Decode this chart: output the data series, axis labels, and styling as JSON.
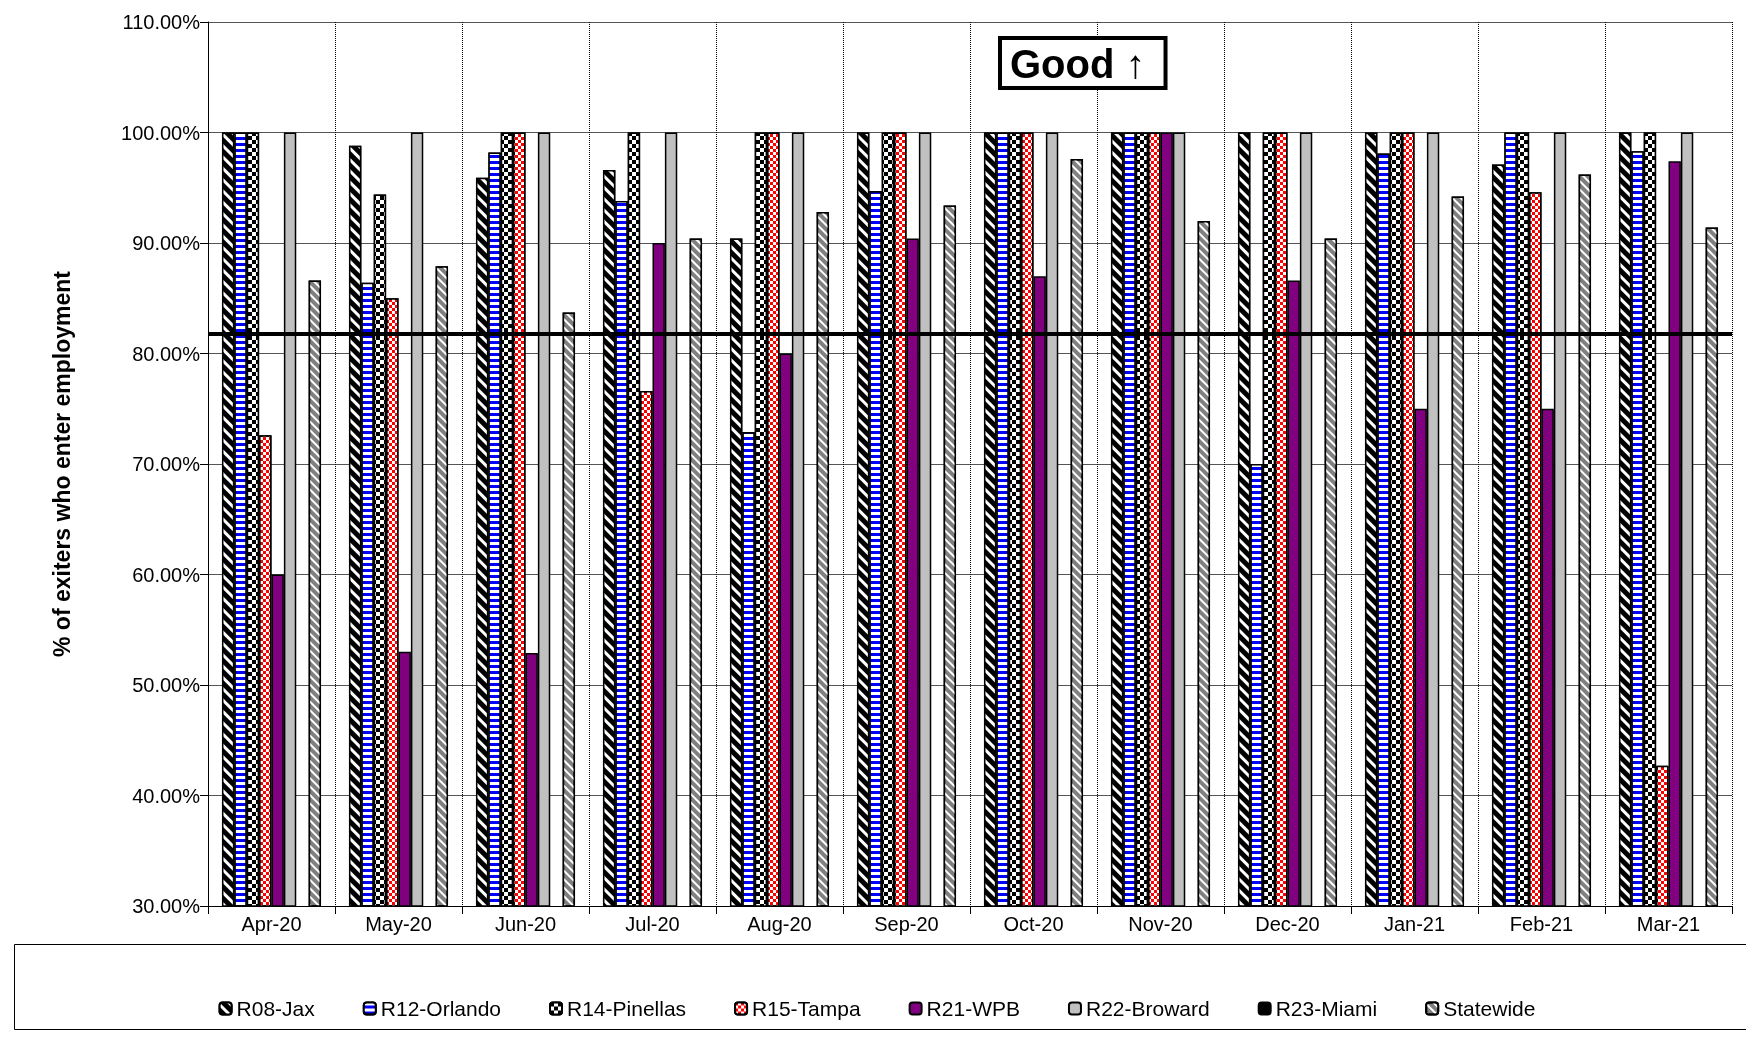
{
  "chart_data": {
    "type": "bar",
    "ylabel": "% of exiters who enter employment",
    "categories": [
      "Apr-20",
      "May-20",
      "Jun-20",
      "Jul-20",
      "Aug-20",
      "Sep-20",
      "Oct-20",
      "Nov-20",
      "Dec-20",
      "Jan-21",
      "Feb-21",
      "Mar-21"
    ],
    "series": [
      {
        "name": "R08-Jax",
        "color": "#000000",
        "values": [
          100,
          98.8,
          95.9,
          96.6,
          90.4,
          100,
          100,
          100,
          100,
          100,
          97.1,
          100
        ]
      },
      {
        "name": "R12-Orlando",
        "color": "#0000ff",
        "values": [
          100,
          86.4,
          98.2,
          93.8,
          72.9,
          94.7,
          100,
          100,
          70.0,
          98.1,
          100,
          98.3
        ]
      },
      {
        "name": "R14-Pinellas",
        "color": "#000000",
        "values": [
          100,
          94.4,
          100,
          100,
          100,
          100,
          100,
          100,
          100,
          100,
          100,
          100
        ]
      },
      {
        "name": "R15-Tampa",
        "color": "#ff0000",
        "values": [
          72.6,
          85.0,
          100,
          76.6,
          100,
          100,
          100,
          100,
          100,
          100,
          94.6,
          42.7
        ]
      },
      {
        "name": "R21-WPB",
        "color": "#800080",
        "values": [
          60,
          53.0,
          52.9,
          90,
          80,
          90.4,
          87.0,
          100,
          86.6,
          75,
          75,
          97.4
        ]
      },
      {
        "name": "R22-Broward",
        "color": "#c0c0c0",
        "values": [
          100,
          100,
          100,
          100,
          100,
          100,
          100,
          100,
          100,
          100,
          100,
          100
        ]
      },
      {
        "name": "R23-Miami",
        "color": "#000000",
        "values": [
          null,
          null,
          null,
          null,
          null,
          null,
          null,
          null,
          null,
          null,
          null,
          null
        ]
      },
      {
        "name": "Statewide",
        "color": "#808080",
        "values": [
          86.6,
          87.9,
          83.7,
          90.4,
          92.8,
          93.4,
          97.6,
          92.0,
          90.4,
          94.2,
          96.2,
          91.4
        ]
      }
    ],
    "ylim": [
      30,
      110
    ],
    "yticks": [
      {
        "value": 30,
        "label": "30.00%"
      },
      {
        "value": 40,
        "label": "40.00%"
      },
      {
        "value": 50,
        "label": "50.00%"
      },
      {
        "value": 60,
        "label": "60.00%"
      },
      {
        "value": 70,
        "label": "70.00%"
      },
      {
        "value": 80,
        "label": "80.00%"
      },
      {
        "value": 90,
        "label": "90.00%"
      },
      {
        "value": 100,
        "label": "100.00%"
      },
      {
        "value": 110,
        "label": "110.00%"
      }
    ],
    "ref_lines": [
      {
        "axis": "y",
        "value": 81.8,
        "color": "#000000"
      }
    ],
    "annotations": [
      "Good ↑"
    ],
    "grid": true,
    "legend": "bottom"
  }
}
